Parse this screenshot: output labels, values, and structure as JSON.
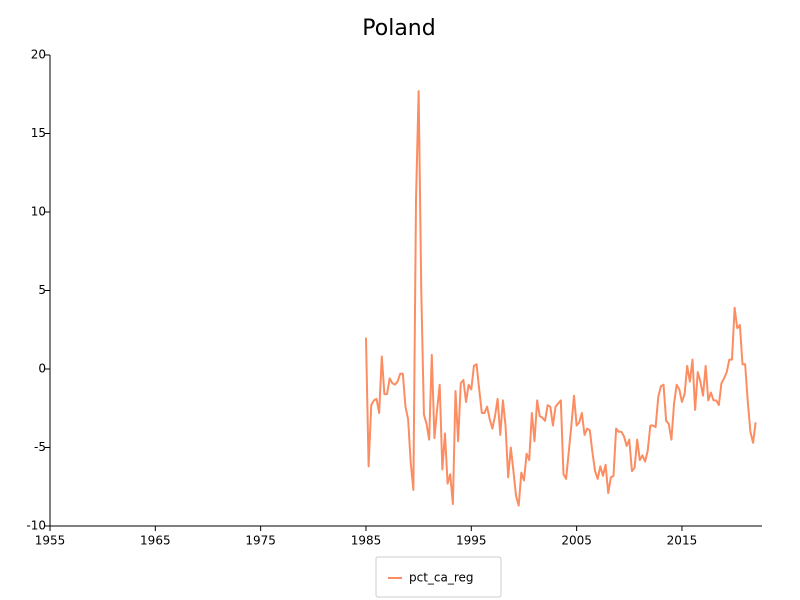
{
  "chart_data": {
    "type": "line",
    "title": "Poland",
    "x": [
      1985,
      1985.25,
      1985.5,
      1985.75,
      1986,
      1986.25,
      1986.5,
      1986.75,
      1987,
      1987.25,
      1987.5,
      1987.75,
      1988,
      1988.25,
      1988.5,
      1988.75,
      1989,
      1989.25,
      1989.5,
      1989.75,
      1990,
      1990.25,
      1990.5,
      1990.75,
      1991,
      1991.25,
      1991.5,
      1991.75,
      1992,
      1992.25,
      1992.5,
      1992.75,
      1993,
      1993.25,
      1993.5,
      1993.75,
      1994,
      1994.25,
      1994.5,
      1994.75,
      1995,
      1995.25,
      1995.5,
      1995.75,
      1996,
      1996.25,
      1996.5,
      1996.75,
      1997,
      1997.25,
      1997.5,
      1997.75,
      1998,
      1998.25,
      1998.5,
      1998.75,
      1999,
      1999.25,
      1999.5,
      1999.75,
      2000,
      2000.25,
      2000.5,
      2000.75,
      2001,
      2001.25,
      2001.5,
      2001.75,
      2002,
      2002.25,
      2002.5,
      2002.75,
      2003,
      2003.25,
      2003.5,
      2003.75,
      2004,
      2004.25,
      2004.5,
      2004.75,
      2005,
      2005.25,
      2005.5,
      2005.75,
      2006,
      2006.25,
      2006.5,
      2006.75,
      2007,
      2007.25,
      2007.5,
      2007.75,
      2008,
      2008.25,
      2008.5,
      2008.75,
      2009,
      2009.25,
      2009.5,
      2009.75,
      2010,
      2010.25,
      2010.5,
      2010.75,
      2011,
      2011.25,
      2011.5,
      2011.75,
      2012,
      2012.25,
      2012.5,
      2012.75,
      2013,
      2013.25,
      2013.5,
      2013.75,
      2014,
      2014.25,
      2014.5,
      2014.75,
      2015,
      2015.25,
      2015.5,
      2015.75,
      2016,
      2016.25,
      2016.5,
      2016.75,
      2017,
      2017.25,
      2017.5,
      2017.75,
      2018,
      2018.25,
      2018.5,
      2018.75,
      2019,
      2019.25,
      2019.5,
      2019.75,
      2020,
      2020.25,
      2020.5,
      2020.75,
      2021,
      2021.25,
      2021.5,
      2021.75,
      2022
    ],
    "series": [
      {
        "name": "pct_ca_reg",
        "color": "#fc8d62",
        "values": [
          2.0,
          -6.2,
          -2.3,
          -2.0,
          -1.9,
          -2.8,
          0.8,
          -1.6,
          -1.6,
          -0.6,
          -0.9,
          -1.0,
          -0.8,
          -0.3,
          -0.3,
          -2.4,
          -3.2,
          -6.0,
          -7.7,
          10.8,
          17.7,
          5.0,
          -2.9,
          -3.5,
          -4.5,
          0.9,
          -4.4,
          -2.6,
          -1.0,
          -6.4,
          -4.1,
          -7.3,
          -6.7,
          -8.6,
          -1.4,
          -4.6,
          -0.9,
          -0.7,
          -2.1,
          -1.0,
          -1.3,
          0.2,
          0.3,
          -1.3,
          -2.8,
          -2.8,
          -2.4,
          -3.2,
          -3.8,
          -3.0,
          -1.9,
          -4.2,
          -2.0,
          -3.6,
          -6.9,
          -5.0,
          -6.5,
          -8.1,
          -8.7,
          -6.6,
          -7.1,
          -5.4,
          -5.8,
          -2.8,
          -4.6,
          -2.0,
          -3.0,
          -3.1,
          -3.3,
          -2.3,
          -2.4,
          -3.6,
          -2.4,
          -2.2,
          -2.0,
          -6.7,
          -7.0,
          -5.3,
          -3.6,
          -1.7,
          -3.6,
          -3.4,
          -2.8,
          -4.2,
          -3.8,
          -3.9,
          -5.3,
          -6.5,
          -7.0,
          -6.2,
          -6.8,
          -6.1,
          -7.9,
          -6.9,
          -6.8,
          -3.8,
          -4.0,
          -4.0,
          -4.3,
          -4.9,
          -4.5,
          -6.5,
          -6.3,
          -4.5,
          -5.8,
          -5.5,
          -5.9,
          -5.2,
          -3.6,
          -3.6,
          -3.7,
          -1.8,
          -1.1,
          -1.0,
          -3.3,
          -3.5,
          -4.5,
          -2.2,
          -1.0,
          -1.3,
          -2.1,
          -1.6,
          0.2,
          -0.8,
          0.6,
          -2.6,
          -0.2,
          -0.8,
          -1.7,
          0.2,
          -2.0,
          -1.5,
          -2.0,
          -2.0,
          -2.3,
          -0.9,
          -0.6,
          -0.2,
          0.6,
          0.6,
          3.9,
          2.6,
          2.8,
          0.3,
          0.3,
          -2.1,
          -4.0,
          -4.7,
          -3.4
        ]
      }
    ],
    "xlim": [
      1955,
      2022.6
    ],
    "xticks": [
      1955,
      1965,
      1975,
      1985,
      1995,
      2005,
      2015
    ],
    "ylim": [
      -10,
      20
    ],
    "yticks": [
      -10,
      -5,
      0,
      5,
      10,
      15,
      20
    ],
    "grid": false,
    "legend": "bottom"
  }
}
